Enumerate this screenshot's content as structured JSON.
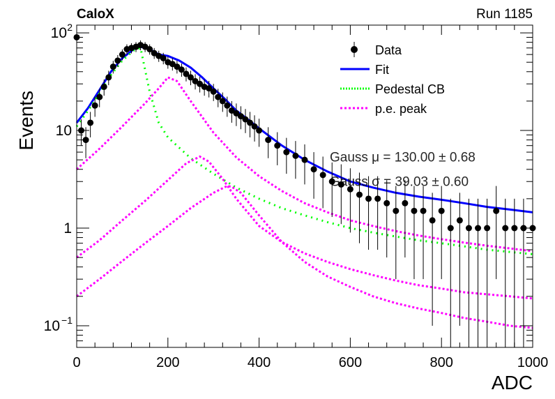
{
  "header": {
    "left_label": "CaloX",
    "right_label": "Run 1185"
  },
  "chart_data": {
    "type": "scatter",
    "title": "",
    "xlabel": "ADC",
    "ylabel": "Events",
    "xlim": [
      0,
      1000
    ],
    "ylim": [
      0.06,
      120
    ],
    "y_scale": "log",
    "x_ticks": [
      0,
      200,
      400,
      600,
      800,
      1000
    ],
    "x_tick_labels": [
      "0",
      "200",
      "400",
      "600",
      "800",
      "1000"
    ],
    "y_ticks": [
      0.1,
      1,
      10,
      100
    ],
    "y_tick_labels": [
      {
        "base": "10",
        "exp": "−1"
      },
      {
        "base": "1",
        "exp": ""
      },
      {
        "base": "10",
        "exp": ""
      },
      {
        "base": "10",
        "exp": "2"
      }
    ],
    "grid": false,
    "legend_position": "top-right",
    "legend": [
      {
        "label": "Data",
        "style": "marker",
        "color": "#000000"
      },
      {
        "label": "Fit",
        "style": "solid",
        "color": "#0000ff"
      },
      {
        "label": "Pedestal CB",
        "style": "dotted",
        "color": "#00ff00"
      },
      {
        "label": "p.e. peak",
        "style": "dashed",
        "color": "#ff00ff"
      }
    ],
    "overlapping_text": [
      {
        "label": "Gauss μ = 130.00 ± 0.68",
        "x": 555,
        "y": 4.8
      },
      {
        "label": "Gauss σ = 39.03 ± 0.60",
        "x": 555,
        "y": 2.7
      }
    ],
    "series": [
      {
        "name": "Data",
        "color": "#000000",
        "x": [
          0,
          10,
          20,
          30,
          40,
          50,
          60,
          70,
          80,
          90,
          100,
          110,
          120,
          130,
          140,
          150,
          160,
          170,
          180,
          190,
          200,
          210,
          220,
          230,
          240,
          250,
          260,
          270,
          280,
          290,
          300,
          310,
          320,
          330,
          340,
          350,
          360,
          370,
          380,
          390,
          400,
          420,
          440,
          460,
          480,
          500,
          520,
          540,
          560,
          580,
          600,
          620,
          640,
          660,
          680,
          700,
          720,
          740,
          760,
          780,
          800,
          820,
          840,
          860,
          880,
          900,
          920,
          940,
          960,
          980,
          1000
        ],
        "y": [
          90,
          10,
          8,
          12,
          18,
          22,
          28,
          35,
          45,
          52,
          60,
          68,
          70,
          72,
          75,
          72,
          68,
          62,
          58,
          55,
          50,
          48,
          45,
          42,
          38,
          35,
          32,
          30,
          28,
          27,
          25,
          22,
          20,
          18,
          16,
          15,
          14,
          13,
          12,
          11,
          10,
          8,
          7,
          6,
          5.5,
          5,
          4,
          3.5,
          3,
          2.8,
          2.5,
          2.2,
          2,
          2,
          1.8,
          1.5,
          1.8,
          1.5,
          1.5,
          1.2,
          1.5,
          1,
          1.2,
          1,
          1,
          1,
          1.5,
          1,
          1,
          1,
          1
        ],
        "yerr": [
          9,
          3,
          2.8,
          3.5,
          4.2,
          4.7,
          5.3,
          5.9,
          6.7,
          7.2,
          7.7,
          8.2,
          8.4,
          8.5,
          8.7,
          8.5,
          8.2,
          7.9,
          7.6,
          7.4,
          7.1,
          6.9,
          6.7,
          6.5,
          6.2,
          5.9,
          5.7,
          5.5,
          5.3,
          5.2,
          5,
          4.7,
          4.5,
          4.2,
          4,
          3.9,
          3.7,
          3.6,
          3.5,
          3.3,
          3.2,
          2.8,
          2.6,
          2.4,
          2.3,
          2.2,
          2,
          1.9,
          1.7,
          1.7,
          1.6,
          1.5,
          1.4,
          1.4,
          1.3,
          1.2,
          1.3,
          1.2,
          1.2,
          1.1,
          1.2,
          1,
          1.1,
          1,
          1,
          1,
          1.2,
          1,
          1,
          1,
          1
        ]
      },
      {
        "name": "Fit",
        "color": "#0000ff",
        "x": [
          0,
          25,
          50,
          75,
          100,
          125,
          140,
          160,
          180,
          200,
          225,
          250,
          275,
          300,
          325,
          350,
          375,
          400,
          450,
          500,
          550,
          600,
          650,
          700,
          750,
          800,
          850,
          900,
          950,
          1000
        ],
        "y": [
          12,
          17,
          26,
          40,
          55,
          68,
          72,
          68,
          60,
          58,
          52,
          44,
          35,
          27,
          21,
          16,
          13,
          10.5,
          7,
          5,
          3.8,
          3,
          2.6,
          2.3,
          2.1,
          1.95,
          1.8,
          1.65,
          1.55,
          1.45
        ]
      },
      {
        "name": "Pedestal CB",
        "color": "#00ff00",
        "x": [
          0,
          25,
          50,
          75,
          100,
          125,
          140,
          160,
          180,
          200,
          250,
          300,
          350,
          400,
          450,
          500,
          550,
          600,
          650,
          700,
          750,
          800,
          850,
          900,
          950,
          1000
        ],
        "y": [
          11,
          16,
          24,
          37,
          52,
          66,
          70,
          25,
          12,
          8.5,
          5.2,
          3.6,
          2.6,
          2,
          1.6,
          1.35,
          1.15,
          1,
          0.9,
          0.82,
          0.75,
          0.7,
          0.65,
          0.6,
          0.57,
          0.54
        ]
      },
      {
        "name": "p.e. peak 1",
        "color": "#ff00ff",
        "x": [
          0,
          50,
          100,
          150,
          180,
          200,
          220,
          250,
          300,
          350,
          400,
          450,
          500,
          550,
          600,
          650,
          700,
          750,
          800,
          850,
          900,
          950,
          1000
        ],
        "y": [
          4,
          6.5,
          11,
          19,
          27,
          35,
          32,
          20,
          9.5,
          5.3,
          3.4,
          2.4,
          1.8,
          1.45,
          1.2,
          1.05,
          0.93,
          0.84,
          0.77,
          0.71,
          0.66,
          0.62,
          0.58
        ]
      },
      {
        "name": "p.e. peak 2",
        "color": "#ff00ff",
        "x": [
          0,
          50,
          100,
          150,
          200,
          240,
          270,
          290,
          320,
          350,
          400,
          450,
          500,
          550,
          600,
          650,
          700,
          750,
          800,
          850,
          900,
          950,
          1000
        ],
        "y": [
          0.5,
          0.75,
          1.2,
          1.9,
          3.1,
          4.6,
          5.4,
          4.8,
          3.2,
          2,
          1.05,
          0.72,
          0.55,
          0.45,
          0.38,
          0.33,
          0.29,
          0.26,
          0.24,
          0.22,
          0.21,
          0.2,
          0.19
        ]
      },
      {
        "name": "p.e. peak 3",
        "color": "#ff00ff",
        "x": [
          0,
          50,
          100,
          150,
          200,
          250,
          300,
          330,
          340,
          360,
          400,
          450,
          500,
          550,
          600,
          650,
          700,
          750,
          800,
          850,
          900,
          950,
          1000
        ],
        "y": [
          0.2,
          0.3,
          0.46,
          0.7,
          1.05,
          1.6,
          2.3,
          2.7,
          2.65,
          2.3,
          1.35,
          0.72,
          0.45,
          0.32,
          0.25,
          0.2,
          0.17,
          0.15,
          0.135,
          0.12,
          0.11,
          0.1,
          0.095
        ]
      }
    ]
  }
}
